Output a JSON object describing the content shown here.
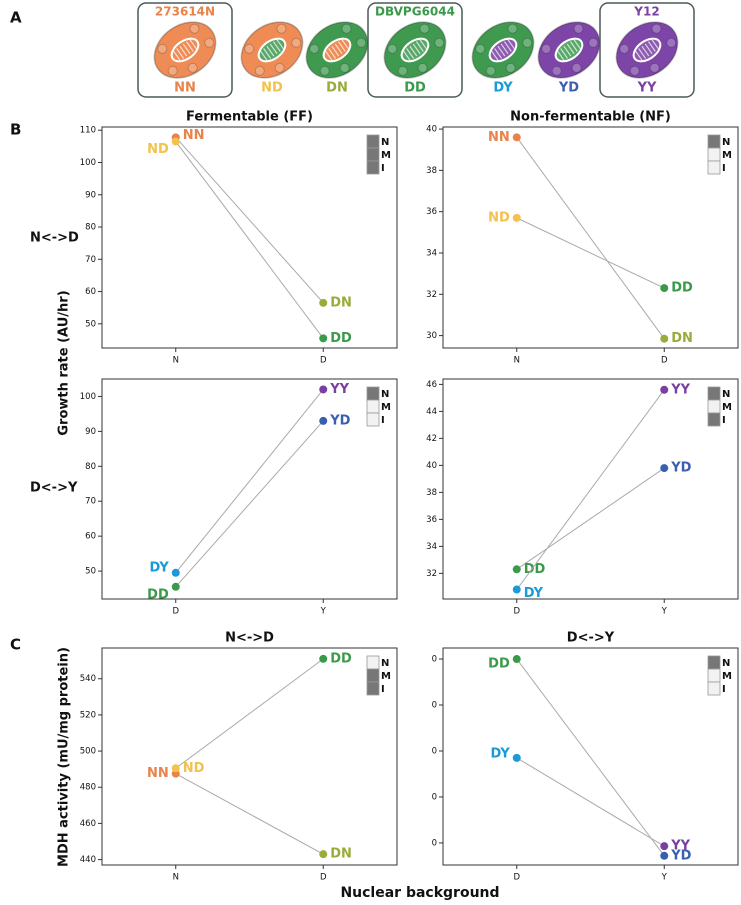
{
  "panels": [
    "A",
    "B",
    "C"
  ],
  "row_labels": [
    "N<->D",
    "D<->Y"
  ],
  "axis_labels": {
    "growth": "Growth rate (AU/hr)",
    "mdh": "MDH activity (mU/mg protein)",
    "x": "Nuclear background"
  },
  "strains": [
    {
      "label": "NN",
      "name": "273614N",
      "color": "#e8834a",
      "body": "#ef8c55",
      "mito": "#ef8c55",
      "boxed": true
    },
    {
      "label": "ND",
      "color": "#f2c14e",
      "body": "#ef8c55",
      "mito": "#59a86a",
      "boxed": false
    },
    {
      "label": "DN",
      "color": "#9aab3a",
      "body": "#3f9a50",
      "mito": "#ef8c55",
      "boxed": false
    },
    {
      "label": "DD",
      "name": "DBVPG6044",
      "color": "#3a9a4a",
      "body": "#3f9a50",
      "mito": "#59a86a",
      "boxed": true
    },
    {
      "label": "DY",
      "color": "#1a9ad6",
      "body": "#3f9a50",
      "mito": "#8d5bb0",
      "boxed": false
    },
    {
      "label": "YD",
      "color": "#3a5fb0",
      "body": "#7d45a8",
      "mito": "#59a86a",
      "boxed": false
    },
    {
      "label": "YY",
      "name": "Y12",
      "color": "#7b3fa0",
      "body": "#7d45a8",
      "mito": "#8d5bb0",
      "boxed": true
    }
  ],
  "chart_data": [
    {
      "type": "line",
      "title": "Fermentable (FF)",
      "categories": [
        "N",
        "D"
      ],
      "line_color": "#aaaaaa",
      "series": [
        {
          "labels": [
            "NN",
            "DN"
          ],
          "colors": [
            "#e8834a",
            "#9aab3a"
          ],
          "values": [
            107.8,
            56.5
          ]
        },
        {
          "labels": [
            "ND",
            "DD"
          ],
          "colors": [
            "#f2c14e",
            "#3a9a4a"
          ],
          "values": [
            106.5,
            45.5
          ]
        }
      ],
      "ylim": [
        42.5,
        111
      ],
      "yticks": [
        50,
        60,
        70,
        80,
        90,
        100,
        110
      ],
      "key": {
        "labels": [
          "N",
          "M",
          "I"
        ],
        "shades": [
          "#777777",
          "#777777",
          "#777777"
        ]
      }
    },
    {
      "type": "line",
      "title": "Non-fermentable (NF)",
      "categories": [
        "N",
        "D"
      ],
      "line_color": "#aaaaaa",
      "series": [
        {
          "labels": [
            "NN",
            "DN"
          ],
          "colors": [
            "#e8834a",
            "#9aab3a"
          ],
          "values": [
            39.6,
            29.85
          ]
        },
        {
          "labels": [
            "ND",
            "DD"
          ],
          "colors": [
            "#f2c14e",
            "#3a9a4a"
          ],
          "values": [
            35.7,
            32.3
          ]
        }
      ],
      "ylim": [
        29.4,
        40.1
      ],
      "yticks": [
        30,
        32,
        34,
        36,
        38,
        40
      ],
      "key": {
        "labels": [
          "N",
          "M",
          "I"
        ],
        "shades": [
          "#777777",
          "#f2f2f2",
          "#f2f2f2"
        ]
      }
    },
    {
      "type": "line",
      "categories": [
        "D",
        "Y"
      ],
      "line_color": "#aaaaaa",
      "series": [
        {
          "labels": [
            "DY",
            "YY"
          ],
          "colors": [
            "#1a9ad6",
            "#7b3fa0"
          ],
          "values": [
            49.5,
            102
          ]
        },
        {
          "labels": [
            "DD",
            "YD"
          ],
          "colors": [
            "#3a9a4a",
            "#3a5fb0"
          ],
          "values": [
            45.5,
            93
          ]
        }
      ],
      "ylim": [
        42,
        105
      ],
      "yticks": [
        50,
        60,
        70,
        80,
        90,
        100
      ],
      "key": {
        "labels": [
          "N",
          "M",
          "I"
        ],
        "shades": [
          "#777777",
          "#f2f2f2",
          "#f2f2f2"
        ]
      }
    },
    {
      "type": "line",
      "categories": [
        "D",
        "Y"
      ],
      "line_color": "#aaaaaa",
      "series": [
        {
          "labels": [
            "DD",
            "YD"
          ],
          "colors": [
            "#3a9a4a",
            "#3a5fb0"
          ],
          "values": [
            32.3,
            39.8
          ]
        },
        {
          "labels": [
            "DY",
            "YY"
          ],
          "colors": [
            "#1a9ad6",
            "#7b3fa0"
          ],
          "values": [
            30.8,
            45.6
          ]
        }
      ],
      "ylim": [
        30.1,
        46.4
      ],
      "yticks": [
        32,
        34,
        36,
        38,
        40,
        42,
        44,
        46
      ],
      "key": {
        "labels": [
          "N",
          "M",
          "I"
        ],
        "shades": [
          "#777777",
          "#f2f2f2",
          "#777777"
        ]
      }
    },
    {
      "type": "line",
      "title": "N<->D",
      "categories": [
        "N",
        "D"
      ],
      "line_color": "#aaaaaa",
      "series": [
        {
          "labels": [
            "NN",
            "DN"
          ],
          "colors": [
            "#e8834a",
            "#9aab3a"
          ],
          "values": [
            487.5,
            443
          ]
        },
        {
          "labels": [
            "ND",
            "DD"
          ],
          "colors": [
            "#f2c14e",
            "#3a9a4a"
          ],
          "values": [
            490.5,
            551
          ]
        }
      ],
      "ylim": [
        437,
        557
      ],
      "yticks": [
        440,
        460,
        480,
        500,
        520,
        540
      ],
      "key": {
        "labels": [
          "N",
          "M",
          "I"
        ],
        "shades": [
          "#f2f2f2",
          "#777777",
          "#777777"
        ]
      }
    },
    {
      "type": "line",
      "title": "D<->Y",
      "categories": [
        "D",
        "Y"
      ],
      "line_color": "#aaaaaa",
      "series": [
        {
          "labels": [
            "DD",
            "YD"
          ],
          "colors": [
            "#3a9a4a",
            "#3a5fb0"
          ],
          "values": [
            0.4,
            -0.028
          ]
        },
        {
          "labels": [
            "DY",
            "YY"
          ],
          "colors": [
            "#1a9ad6",
            "#7b3fa0"
          ],
          "values": [
            0.185,
            -0.007
          ]
        }
      ],
      "ylim": [
        -0.048,
        0.424
      ],
      "yticks": [
        {
          "value": 0.0,
          "label": "0"
        },
        {
          "value": 0.1,
          "label": "0"
        },
        {
          "value": 0.2,
          "label": "0"
        },
        {
          "value": 0.3,
          "label": "0"
        },
        {
          "value": 0.4,
          "label": "0"
        }
      ],
      "key": {
        "labels": [
          "N",
          "M",
          "I"
        ],
        "shades": [
          "#777777",
          "#f2f2f2",
          "#f2f2f2"
        ]
      }
    }
  ]
}
